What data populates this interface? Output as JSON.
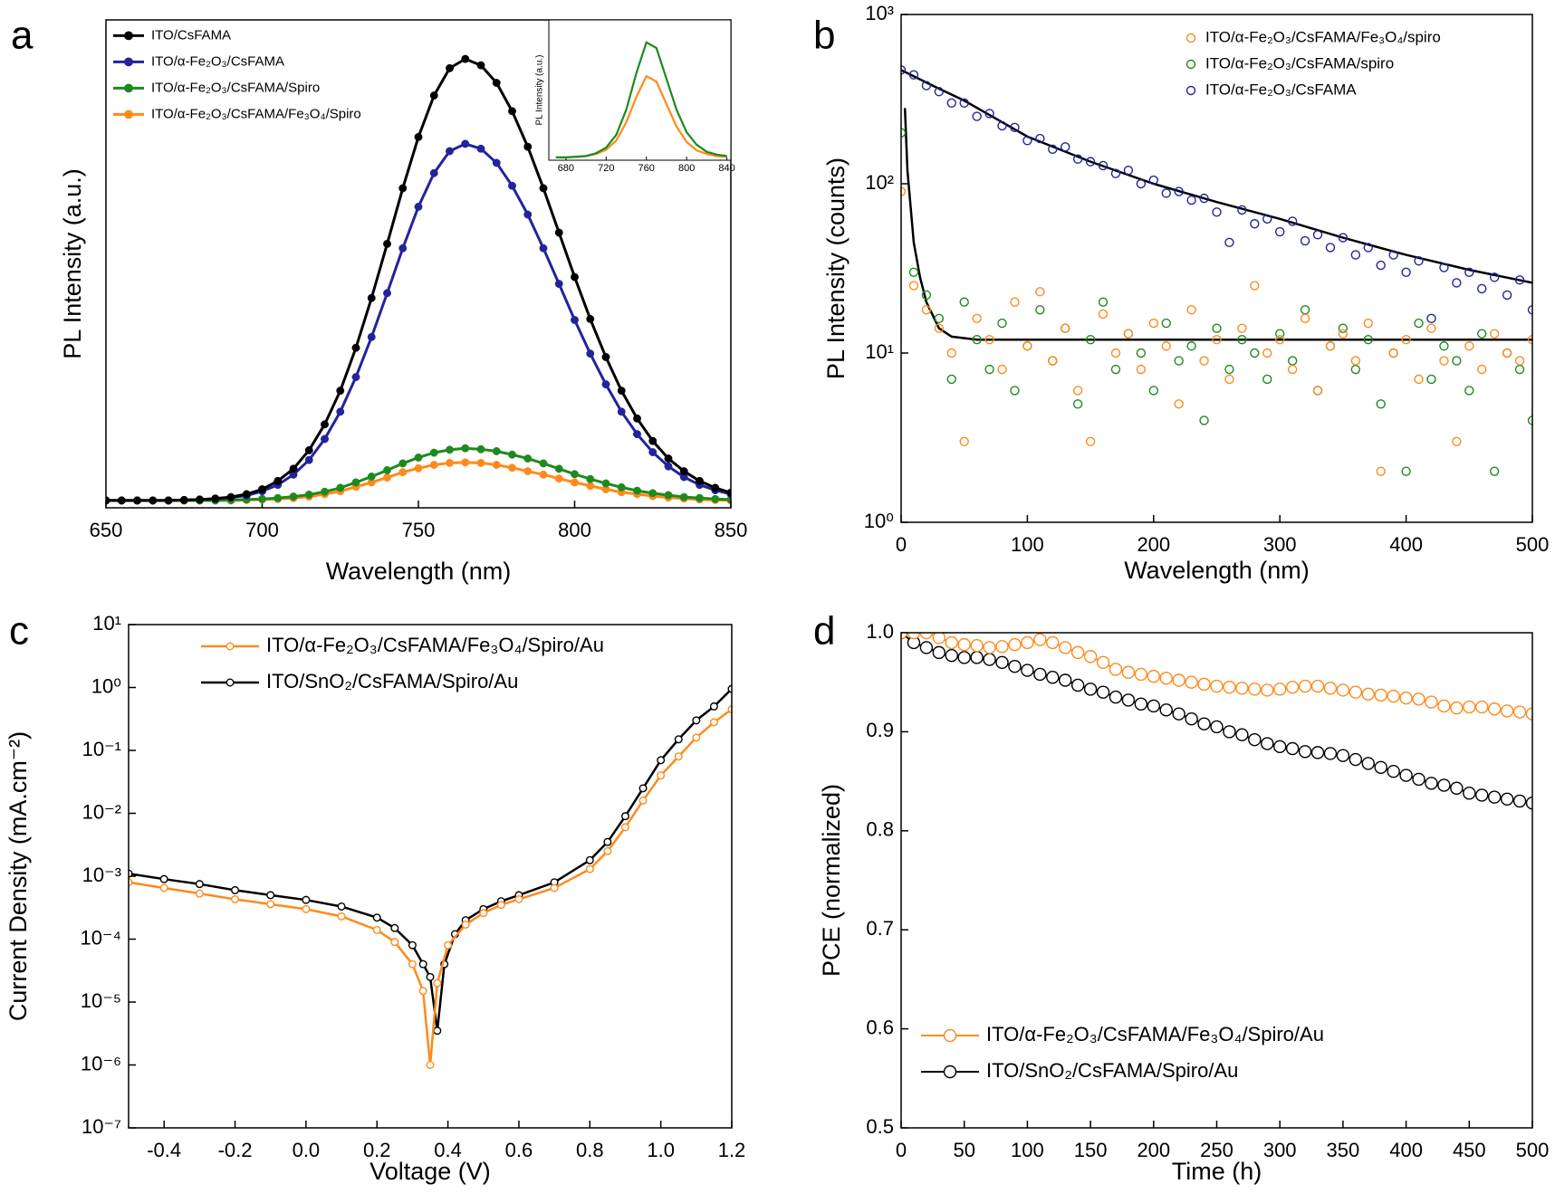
{
  "chart_data": [
    {
      "type": "line",
      "label": "a",
      "xlabel": "Wavelength (nm)",
      "ylabel": "PL Intensity (a.u.)",
      "xlim": [
        650,
        850
      ],
      "xticks": [
        650,
        700,
        750,
        800,
        850
      ],
      "ylim": [
        0,
        100
      ],
      "legend": "upper left",
      "marker": "filled-circle",
      "x": [
        650,
        655,
        660,
        665,
        670,
        675,
        680,
        685,
        690,
        695,
        700,
        705,
        710,
        715,
        720,
        725,
        730,
        735,
        740,
        745,
        750,
        755,
        760,
        765,
        770,
        775,
        780,
        785,
        790,
        795,
        800,
        805,
        810,
        815,
        820,
        825,
        830,
        835,
        840,
        845,
        850
      ],
      "series": [
        {
          "name": "ITO/CsFAMA",
          "color": "#000000",
          "values": [
            1.5,
            1.5,
            1.5,
            1.5,
            1.5,
            1.6,
            1.7,
            1.9,
            2.2,
            2.8,
            3.8,
            5.5,
            8.0,
            11.8,
            17.1,
            24.0,
            32.8,
            43.0,
            54.1,
            65.5,
            76.0,
            84.5,
            90.1,
            92.0,
            90.7,
            87.1,
            81.3,
            74.0,
            65.5,
            56.4,
            47.3,
            38.7,
            30.9,
            24.0,
            18.3,
            13.7,
            10.1,
            7.5,
            5.5,
            4.1,
            3.1
          ]
        },
        {
          "name": "ITO/α-Fe₂O₃/CsFAMA",
          "color": "#23239c",
          "values": [
            1.5,
            1.5,
            1.5,
            1.5,
            1.5,
            1.6,
            1.7,
            1.8,
            2.1,
            2.5,
            3.4,
            4.7,
            6.8,
            9.8,
            14.1,
            19.7,
            26.8,
            35.0,
            44.0,
            53.2,
            61.7,
            68.6,
            73.1,
            74.6,
            73.6,
            70.7,
            66.0,
            60.1,
            53.2,
            45.9,
            38.5,
            31.6,
            25.3,
            19.7,
            15.1,
            11.4,
            8.5,
            6.3,
            4.7,
            3.6,
            2.8
          ]
        },
        {
          "name": "ITO/α-Fe₂O₃/CsFAMA/Spiro",
          "color": "#1e8a1e",
          "values": [
            1.5,
            1.5,
            1.5,
            1.5,
            1.5,
            1.5,
            1.5,
            1.5,
            1.6,
            1.7,
            1.8,
            2.0,
            2.3,
            2.7,
            3.3,
            4.1,
            5.2,
            6.4,
            7.7,
            9.1,
            10.3,
            11.3,
            11.9,
            12.2,
            12.0,
            11.6,
            10.9,
            10.1,
            9.1,
            8.0,
            6.9,
            5.9,
            5.0,
            4.2,
            3.5,
            3.0,
            2.6,
            2.2,
            2.0,
            1.8,
            1.7
          ]
        },
        {
          "name": "ITO/α-Fe₂O₃/CsFAMA/Fe₃O₄/Spiro",
          "color": "#ff8a1c",
          "values": [
            1.5,
            1.5,
            1.5,
            1.5,
            1.5,
            1.5,
            1.5,
            1.5,
            1.5,
            1.6,
            1.7,
            1.8,
            2.0,
            2.3,
            2.8,
            3.4,
            4.3,
            5.2,
            6.2,
            7.3,
            8.1,
            8.8,
            9.2,
            9.3,
            9.2,
            8.8,
            8.2,
            7.5,
            6.8,
            6.0,
            5.2,
            4.5,
            3.8,
            3.2,
            2.8,
            2.4,
            2.1,
            1.9,
            1.7,
            1.6,
            1.5
          ]
        }
      ]
    },
    {
      "type": "line",
      "ylabel": "PL Intensity (a.u.)",
      "xlim": [
        663,
        844
      ],
      "xticks": [
        680,
        720,
        760,
        800,
        840
      ],
      "ylim": [
        0,
        100
      ],
      "x": [
        670,
        680,
        690,
        700,
        710,
        720,
        730,
        740,
        750,
        760,
        770,
        780,
        790,
        800,
        810,
        820,
        830,
        840
      ],
      "series": [
        {
          "color": "#1e8a1e",
          "values": [
            2,
            2,
            2.5,
            3,
            5,
            9,
            18,
            36,
            62,
            84,
            80,
            58,
            36,
            20,
            11,
            6,
            4,
            3
          ]
        },
        {
          "color": "#ff8a1c",
          "values": [
            2,
            2,
            2.3,
            3,
            4.5,
            7.5,
            14,
            27,
            45,
            60,
            56,
            40,
            24,
            13,
            7,
            4.5,
            3,
            2.5
          ]
        }
      ]
    },
    {
      "type": "scatter",
      "label": "b",
      "xlabel": "Wavelength (nm)",
      "ylabel": "PL Intensity (counts)",
      "log_y": true,
      "xlim": [
        0,
        500
      ],
      "xticks": [
        0,
        100,
        200,
        300,
        400,
        500
      ],
      "ylim": [
        1,
        1000
      ],
      "yticks": [
        {
          "value": 1,
          "label": "10⁰"
        },
        {
          "value": 10,
          "label": "10¹"
        },
        {
          "value": 100,
          "label": "10²"
        },
        {
          "value": 1000,
          "label": "10³"
        }
      ],
      "legend": "upper right",
      "marker": "open-circle",
      "x": [
        0,
        10,
        20,
        30,
        40,
        50,
        60,
        70,
        80,
        90,
        100,
        110,
        120,
        130,
        140,
        150,
        160,
        170,
        180,
        190,
        200,
        210,
        220,
        230,
        240,
        250,
        260,
        270,
        280,
        290,
        300,
        310,
        320,
        330,
        340,
        350,
        360,
        370,
        380,
        390,
        400,
        410,
        420,
        430,
        440,
        450,
        460,
        470,
        480,
        490,
        500
      ],
      "series": [
        {
          "name": "ITO/α-Fe₂O₃/CsFAMA/Fe₃O₄/spiro",
          "color": "#ff8a1c",
          "values": [
            90,
            25,
            18,
            14,
            10,
            3,
            16,
            12,
            8,
            20,
            11,
            23,
            9,
            14,
            6,
            3,
            17,
            10,
            13,
            8,
            15,
            11,
            5,
            18,
            9,
            12,
            7,
            14,
            25,
            10,
            12,
            8,
            16,
            6,
            11,
            13,
            9,
            15,
            2,
            10,
            12,
            7,
            14,
            9,
            3,
            11,
            8,
            13,
            10,
            9,
            12
          ]
        },
        {
          "name": "ITO/α-Fe₂O₃/CsFAMA/spiro",
          "color": "#1e8a1e",
          "values": [
            200,
            30,
            22,
            16,
            7,
            20,
            12,
            8,
            15,
            6,
            11,
            18,
            9,
            14,
            5,
            12,
            20,
            8,
            13,
            10,
            6,
            15,
            9,
            11,
            4,
            14,
            8,
            12,
            10,
            7,
            13,
            9,
            18,
            6,
            11,
            14,
            8,
            12,
            5,
            10,
            2,
            15,
            7,
            11,
            9,
            6,
            13,
            2,
            10,
            8,
            4
          ]
        },
        {
          "name": "ITO/α-Fe₂O₃/CsFAMA",
          "color": "#23239c",
          "values": [
            470,
            440,
            380,
            350,
            300,
            300,
            250,
            260,
            220,
            215,
            180,
            185,
            160,
            165,
            140,
            135,
            128,
            115,
            120,
            100,
            105,
            88,
            90,
            80,
            82,
            68,
            45,
            70,
            58,
            62,
            52,
            60,
            46,
            50,
            42,
            48,
            38,
            42,
            33,
            38,
            30,
            35,
            16,
            32,
            26,
            30,
            24,
            28,
            22,
            27,
            18
          ]
        },
        {
          "type": "line",
          "color": "#000000",
          "x": [
            0,
            25,
            50,
            100,
            150,
            200,
            250,
            300,
            350,
            400,
            450,
            500
          ],
          "values": [
            470,
            380,
            310,
            190,
            135,
            100,
            78,
            62,
            48,
            38,
            31,
            26
          ]
        },
        {
          "type": "line",
          "color": "#000000",
          "x": [
            3,
            5,
            10,
            15,
            20,
            30,
            40,
            60,
            100,
            500
          ],
          "values": [
            280,
            120,
            45,
            28,
            20,
            14,
            12.5,
            12,
            12,
            12
          ]
        }
      ]
    },
    {
      "type": "line",
      "label": "c",
      "xlabel": "Voltage (V)",
      "ylabel": "Current Density (mA.cm⁻²)",
      "log_y": true,
      "xlim": [
        -0.5,
        1.2
      ],
      "xticks": [
        -0.4,
        -0.2,
        {
          "value": 0,
          "label": "0.0"
        },
        0.2,
        0.4,
        0.6,
        0.8,
        {
          "value": 1,
          "label": "1.0"
        },
        1.2
      ],
      "ylim": [
        1e-07,
        10
      ],
      "yticks": [
        {
          "value": 1e-07,
          "label": "10⁻⁷"
        },
        {
          "value": 1e-06,
          "label": "10⁻⁶"
        },
        {
          "value": 1e-05,
          "label": "10⁻⁵"
        },
        {
          "value": 0.0001,
          "label": "10⁻⁴"
        },
        {
          "value": 0.001,
          "label": "10⁻³"
        },
        {
          "value": 0.01,
          "label": "10⁻²"
        },
        {
          "value": 0.1,
          "label": "10⁻¹"
        },
        {
          "value": 1,
          "label": "10⁰"
        },
        {
          "value": 10,
          "label": "10¹"
        }
      ],
      "legend": "upper left",
      "marker": "open-circle",
      "series": [
        {
          "name": "ITO/α-Fe₂O₃/CsFAMA/Fe₃O₄/Spiro/Au",
          "color": "#ff8a1c",
          "x": [
            -0.5,
            -0.4,
            -0.3,
            -0.2,
            -0.1,
            0,
            0.1,
            0.2,
            0.25,
            0.3,
            0.33,
            0.35,
            0.37,
            0.4,
            0.45,
            0.5,
            0.55,
            0.6,
            0.7,
            0.8,
            0.85,
            0.9,
            0.95,
            1.0,
            1.05,
            1.1,
            1.15,
            1.2
          ],
          "values": [
            0.0008,
            0.00065,
            0.00053,
            0.00043,
            0.00036,
            0.0003,
            0.00023,
            0.00014,
            9e-05,
            4e-05,
            1.5e-05,
            1e-06,
            2e-05,
            8e-05,
            0.00017,
            0.00026,
            0.00035,
            0.00043,
            0.00065,
            0.0013,
            0.0025,
            0.006,
            0.016,
            0.04,
            0.08,
            0.16,
            0.28,
            0.45
          ]
        },
        {
          "name": "ITO/SnO₂/CsFAMA/Spiro/Au",
          "color": "#000000",
          "x": [
            -0.5,
            -0.4,
            -0.3,
            -0.2,
            -0.1,
            0,
            0.1,
            0.2,
            0.25,
            0.3,
            0.33,
            0.35,
            0.37,
            0.39,
            0.42,
            0.45,
            0.5,
            0.55,
            0.6,
            0.7,
            0.8,
            0.85,
            0.9,
            0.95,
            1.0,
            1.05,
            1.1,
            1.15,
            1.2
          ],
          "values": [
            0.0011,
            0.0009,
            0.00075,
            0.0006,
            0.0005,
            0.00042,
            0.00033,
            0.00022,
            0.00015,
            8e-05,
            4e-05,
            2.5e-05,
            3.5e-06,
            4e-05,
            0.00012,
            0.0002,
            0.0003,
            0.0004,
            0.0005,
            0.0008,
            0.0018,
            0.0035,
            0.009,
            0.025,
            0.07,
            0.15,
            0.3,
            0.5,
            0.95
          ]
        }
      ]
    },
    {
      "type": "line",
      "label": "d",
      "xlabel": "Time (h)",
      "ylabel": "PCE (normalized)",
      "xlim": [
        0,
        500
      ],
      "xticks": [
        0,
        50,
        100,
        150,
        200,
        250,
        300,
        350,
        400,
        450,
        500
      ],
      "ylim": [
        0.5,
        1.0
      ],
      "yticks": [
        0.5,
        0.6,
        0.7,
        0.8,
        0.9,
        {
          "value": 1,
          "label": "1.0"
        }
      ],
      "legend": "lower left",
      "marker": "open-circle",
      "x": [
        0,
        10,
        20,
        30,
        40,
        50,
        60,
        70,
        80,
        90,
        100,
        110,
        120,
        130,
        140,
        150,
        160,
        170,
        180,
        190,
        200,
        210,
        220,
        230,
        240,
        250,
        260,
        270,
        280,
        290,
        300,
        310,
        320,
        330,
        340,
        350,
        360,
        370,
        380,
        390,
        400,
        410,
        420,
        430,
        440,
        450,
        460,
        470,
        480,
        490,
        500
      ],
      "series": [
        {
          "name": "ITO/α-Fe₂O₃/CsFAMA/Fe₃O₄/Spiro/Au",
          "color": "#ff8a1c",
          "values": [
            1.0,
            1.0,
            1.0,
            0.995,
            0.99,
            0.988,
            0.987,
            0.985,
            0.986,
            0.988,
            0.99,
            0.993,
            0.99,
            0.985,
            0.98,
            0.976,
            0.97,
            0.963,
            0.96,
            0.958,
            0.956,
            0.954,
            0.952,
            0.95,
            0.948,
            0.946,
            0.945,
            0.944,
            0.943,
            0.942,
            0.943,
            0.945,
            0.946,
            0.946,
            0.944,
            0.942,
            0.94,
            0.938,
            0.937,
            0.936,
            0.934,
            0.933,
            0.93,
            0.926,
            0.924,
            0.925,
            0.925,
            0.923,
            0.921,
            0.92,
            0.918
          ]
        },
        {
          "name": "ITO/SnO₂/CsFAMA/Spiro/Au",
          "color": "#000000",
          "values": [
            1.0,
            0.99,
            0.985,
            0.98,
            0.977,
            0.975,
            0.975,
            0.973,
            0.97,
            0.966,
            0.962,
            0.958,
            0.955,
            0.952,
            0.947,
            0.943,
            0.94,
            0.935,
            0.932,
            0.928,
            0.926,
            0.922,
            0.918,
            0.913,
            0.908,
            0.905,
            0.9,
            0.897,
            0.892,
            0.888,
            0.885,
            0.883,
            0.88,
            0.879,
            0.878,
            0.876,
            0.872,
            0.868,
            0.864,
            0.86,
            0.856,
            0.852,
            0.848,
            0.846,
            0.843,
            0.838,
            0.836,
            0.834,
            0.832,
            0.83,
            0.828
          ]
        }
      ]
    }
  ]
}
